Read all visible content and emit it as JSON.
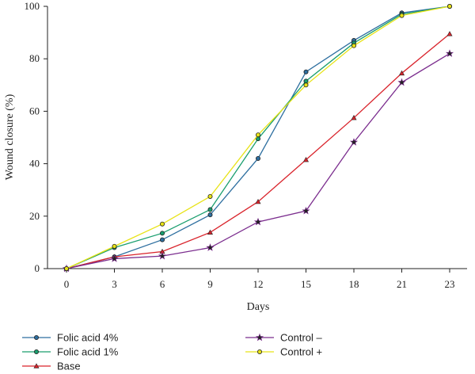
{
  "chart_data": {
    "type": "line",
    "xlabel": "Days",
    "ylabel": "Wound closure (%)",
    "x": [
      0,
      3,
      6,
      9,
      12,
      15,
      18,
      21,
      23
    ],
    "xticks": [
      "0",
      "3",
      "6",
      "9",
      "12",
      "15",
      "18",
      "21",
      "23"
    ],
    "ylim": [
      0,
      100
    ],
    "yticks": [
      "0",
      "20",
      "40",
      "60",
      "80",
      "100"
    ],
    "grid": false,
    "legend_position": "bottom",
    "series": [
      {
        "name": "Folic acid 4%",
        "color": "#2e6fa0",
        "marker": "circle",
        "values": [
          0,
          4.5,
          11,
          20.5,
          42,
          75,
          87,
          97.5,
          100
        ]
      },
      {
        "name": "Folic acid 1%",
        "color": "#1a9e6e",
        "marker": "circle",
        "values": [
          0,
          8,
          13.5,
          22.5,
          49.5,
          71.5,
          86,
          97,
          100
        ]
      },
      {
        "name": "Base",
        "color": "#d9232b",
        "marker": "triangle",
        "values": [
          0,
          4.5,
          6.5,
          13.8,
          25.5,
          41.5,
          57.5,
          74.5,
          89.5
        ]
      },
      {
        "name": "Control –",
        "color": "#7b2d8e",
        "marker": "star",
        "values": [
          0,
          3.8,
          4.8,
          8,
          17.8,
          22,
          48.2,
          71,
          82
        ]
      },
      {
        "name": "Control +",
        "color": "#e8e317",
        "marker": "circle",
        "values": [
          0,
          8.5,
          17,
          27.5,
          51,
          70,
          85,
          96.5,
          100
        ]
      }
    ]
  }
}
